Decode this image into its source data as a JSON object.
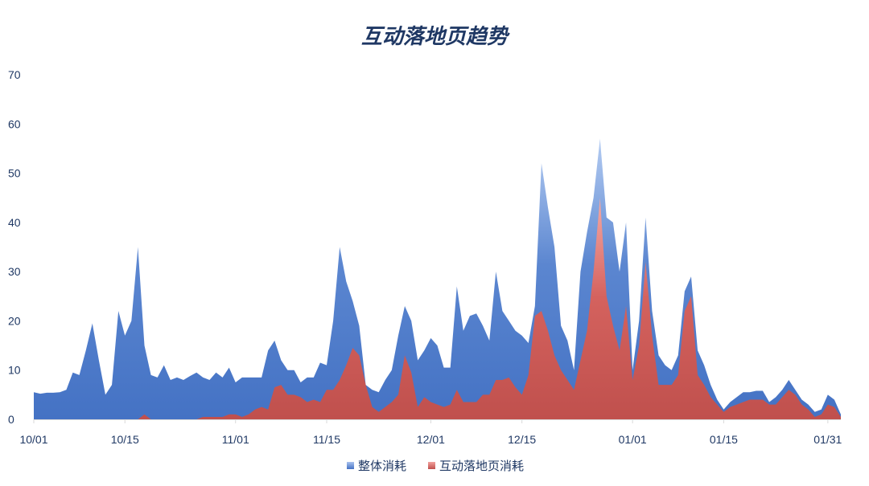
{
  "chart_data": {
    "type": "area",
    "title": "互动落地页趋势",
    "xlabel": "",
    "ylabel": "",
    "ylim": [
      0,
      70
    ],
    "yticks": [
      0,
      10,
      20,
      30,
      40,
      50,
      60,
      70
    ],
    "grid": false,
    "legend_position": "bottom",
    "x_tick_labels": [
      {
        "label": "10/01",
        "day": 0
      },
      {
        "label": "10/15",
        "day": 14
      },
      {
        "label": "11/01",
        "day": 31
      },
      {
        "label": "11/15",
        "day": 45
      },
      {
        "label": "12/01",
        "day": 61
      },
      {
        "label": "12/15",
        "day": 75
      },
      {
        "label": "01/01",
        "day": 92
      },
      {
        "label": "01/15",
        "day": 106
      },
      {
        "label": "01/31",
        "day": 122
      }
    ],
    "series": [
      {
        "name": "整体消耗",
        "color": "#4472c4",
        "color_light": "#a9c3ee",
        "values": [
          5.5,
          5.2,
          5.4,
          5.4,
          5.5,
          6,
          9.5,
          9,
          14,
          19.5,
          12,
          5,
          7,
          22,
          17,
          20,
          35,
          15,
          9,
          8.5,
          11,
          8,
          8.5,
          8,
          8.8,
          9.5,
          8.5,
          8,
          9.5,
          8.5,
          10.5,
          7.5,
          8.5,
          8.5,
          8.5,
          8.5,
          14,
          16,
          12,
          10,
          10,
          7.5,
          8.5,
          8.5,
          11.5,
          11,
          20,
          35,
          28,
          24,
          19,
          7,
          6,
          5.5,
          8,
          10,
          17,
          23,
          20,
          12,
          14,
          16.5,
          15,
          10.5,
          10.5,
          27,
          18,
          21,
          21.5,
          19,
          16,
          30,
          22,
          20,
          18,
          17,
          15.5,
          23,
          52,
          43,
          35,
          19,
          16,
          10,
          30,
          38,
          45,
          57,
          41,
          40,
          30,
          40,
          10,
          20,
          41,
          22,
          13,
          11,
          10,
          13,
          26,
          29,
          14,
          11,
          7,
          4,
          2,
          3.5,
          4.5,
          5.5,
          5.5,
          5.8,
          5.8,
          3.5,
          4.5,
          6,
          8,
          6,
          4,
          3,
          1.5,
          2,
          5,
          4,
          1
        ]
      },
      {
        "name": "互动落地页消耗",
        "color": "#c0504d",
        "color_light": "#f2a29e",
        "values": [
          0,
          0,
          0,
          0,
          0,
          0,
          0,
          0,
          0,
          0,
          0,
          0,
          0,
          0,
          0,
          0,
          0,
          1,
          0,
          0,
          0,
          0,
          0,
          0,
          0,
          0,
          0.5,
          0.5,
          0.5,
          0.5,
          1,
          1,
          0.5,
          1,
          2,
          2.5,
          2,
          6.5,
          7,
          5,
          5,
          4.5,
          3.5,
          4,
          3.5,
          6,
          6,
          8,
          11,
          14.5,
          13,
          7,
          2.5,
          1.5,
          2.5,
          3.5,
          5,
          13,
          9.5,
          2.5,
          4.5,
          3.5,
          3,
          2.5,
          3,
          6,
          3.5,
          3.5,
          3.5,
          5,
          5,
          8,
          8,
          8.5,
          6.5,
          5,
          9,
          21,
          22,
          18,
          13,
          10,
          8,
          6,
          12,
          18,
          30,
          45,
          25,
          19,
          14,
          23,
          8,
          15,
          32,
          17,
          7,
          7,
          7,
          9,
          22,
          25,
          9,
          7,
          4.5,
          3,
          1.5,
          2.5,
          3,
          3.5,
          4,
          4,
          4,
          3,
          3,
          4.5,
          6,
          5,
          3,
          2,
          0.5,
          1,
          3,
          2.5,
          0.5
        ]
      }
    ]
  },
  "legend": {
    "items": [
      "整体消耗",
      "互动落地页消耗"
    ]
  }
}
